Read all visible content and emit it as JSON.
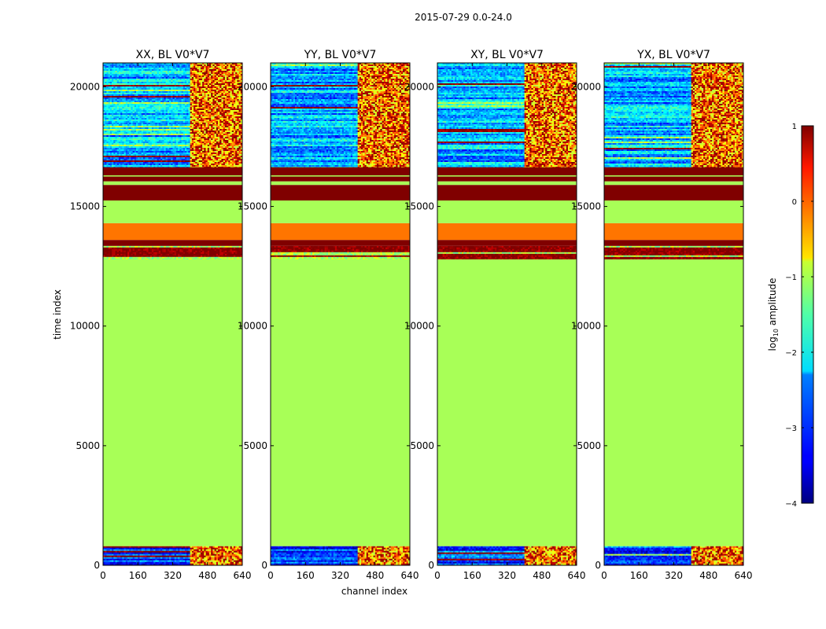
{
  "figure_title": "2015-07-29 0.0-24.0",
  "chart_data": {
    "type": "heatmap",
    "suptitle": "2015-07-29 0.0-24.0",
    "xlabel": "channel index",
    "ylabel": "time index",
    "xlim": [
      0,
      640
    ],
    "ylim": [
      0,
      21000
    ],
    "xticks": [
      0,
      160,
      320,
      480,
      640
    ],
    "yticks": [
      0,
      5000,
      10000,
      15000,
      20000
    ],
    "panels": [
      {
        "title": "XX, BL V0*V7",
        "pol": "XX",
        "hot_channel_start": 400
      },
      {
        "title": "YY, BL V0*V7",
        "pol": "YY",
        "hot_channel_start": 400
      },
      {
        "title": "XY, BL V0*V7",
        "pol": "XY",
        "hot_channel_start": 400
      },
      {
        "title": "YX, BL V0*V7",
        "pol": "YX",
        "hot_channel_start": 400
      }
    ],
    "time_bands": [
      {
        "from": 0,
        "to": 800,
        "log10_amplitude": -3.0,
        "kind": "noise"
      },
      {
        "from": 800,
        "to": 12800,
        "log10_amplitude": -1.3,
        "kind": "flat"
      },
      {
        "from": 12800,
        "to": 13350,
        "log10_amplitude": -1.0,
        "kind": "mixed"
      },
      {
        "from": 13350,
        "to": 13600,
        "log10_amplitude": 1.0,
        "kind": "flat"
      },
      {
        "from": 13600,
        "to": 14300,
        "log10_amplitude": -0.2,
        "kind": "flat"
      },
      {
        "from": 14300,
        "to": 15250,
        "log10_amplitude": -1.3,
        "kind": "flat"
      },
      {
        "from": 15250,
        "to": 15900,
        "log10_amplitude": 1.0,
        "kind": "flat"
      },
      {
        "from": 15900,
        "to": 16050,
        "log10_amplitude": -1.3,
        "kind": "flat"
      },
      {
        "from": 16050,
        "to": 16250,
        "log10_amplitude": 1.0,
        "kind": "flat"
      },
      {
        "from": 16250,
        "to": 16300,
        "log10_amplitude": -1.3,
        "kind": "flat"
      },
      {
        "from": 16300,
        "to": 16650,
        "log10_amplitude": 1.0,
        "kind": "flat"
      },
      {
        "from": 16650,
        "to": 21000,
        "log10_amplitude": -2.5,
        "kind": "noise"
      }
    ],
    "colorbar": {
      "label": "log10 amplitude",
      "label_main": "log",
      "label_sub": "10",
      "label_rest": " amplitude",
      "colormap": "jet",
      "range": [
        -4,
        1
      ],
      "ticks": [
        1,
        0,
        -1,
        -2,
        -3,
        -4
      ],
      "tick_labels": [
        "1",
        "0",
        "−1",
        "−2",
        "−3",
        "−4"
      ]
    }
  }
}
